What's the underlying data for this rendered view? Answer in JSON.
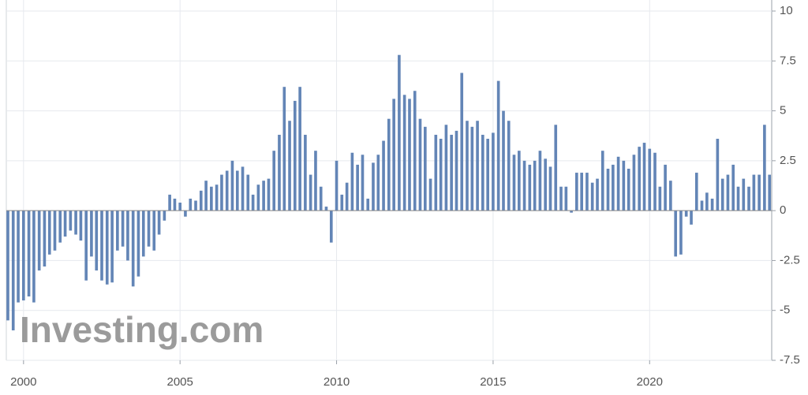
{
  "chart_data": {
    "type": "bar",
    "watermark": "Investing.com",
    "color": "#6385b6",
    "grid": true,
    "xlim": [
      1999.45,
      2023.9
    ],
    "xticks": [
      2000,
      2005,
      2010,
      2015,
      2020
    ],
    "ylim": [
      -7.5,
      10
    ],
    "yticks": [
      10,
      7.5,
      5,
      2.5,
      0,
      -2.5,
      -5,
      -7.5
    ],
    "x": [
      1999.5,
      1999.67,
      1999.83,
      2000,
      2000.17,
      2000.33,
      2000.5,
      2000.67,
      2000.83,
      2001,
      2001.17,
      2001.33,
      2001.5,
      2001.67,
      2001.83,
      2002,
      2002.17,
      2002.33,
      2002.5,
      2002.67,
      2002.83,
      2003,
      2003.17,
      2003.33,
      2003.5,
      2003.67,
      2003.83,
      2004,
      2004.17,
      2004.33,
      2004.5,
      2004.67,
      2004.83,
      2005,
      2005.17,
      2005.33,
      2005.5,
      2005.67,
      2005.83,
      2006,
      2006.17,
      2006.33,
      2006.5,
      2006.67,
      2006.83,
      2007,
      2007.17,
      2007.33,
      2007.5,
      2007.67,
      2007.83,
      2008,
      2008.17,
      2008.33,
      2008.5,
      2008.67,
      2008.83,
      2009,
      2009.17,
      2009.33,
      2009.5,
      2009.67,
      2009.83,
      2010,
      2010.17,
      2010.33,
      2010.5,
      2010.67,
      2010.83,
      2011,
      2011.17,
      2011.33,
      2011.5,
      2011.67,
      2011.83,
      2012,
      2012.17,
      2012.33,
      2012.5,
      2012.67,
      2012.83,
      2013,
      2013.17,
      2013.33,
      2013.5,
      2013.67,
      2013.83,
      2014,
      2014.17,
      2014.33,
      2014.5,
      2014.67,
      2014.83,
      2015,
      2015.17,
      2015.33,
      2015.5,
      2015.67,
      2015.83,
      2016,
      2016.17,
      2016.33,
      2016.5,
      2016.67,
      2016.83,
      2017,
      2017.17,
      2017.33,
      2017.5,
      2017.67,
      2017.83,
      2018,
      2018.17,
      2018.33,
      2018.5,
      2018.67,
      2018.83,
      2019,
      2019.17,
      2019.33,
      2019.5,
      2019.67,
      2019.83,
      2020,
      2020.17,
      2020.33,
      2020.5,
      2020.67,
      2020.83,
      2021,
      2021.17,
      2021.33,
      2021.5,
      2021.67,
      2021.83,
      2022,
      2022.17,
      2022.33,
      2022.5,
      2022.67,
      2022.83,
      2023,
      2023.17,
      2023.33,
      2023.5,
      2023.67,
      2023.83
    ],
    "values": [
      -5.5,
      -6,
      -4.6,
      -4.5,
      -4.3,
      -4.6,
      -3,
      -2.8,
      -2.2,
      -2,
      -1.6,
      -1.3,
      -1,
      -1.2,
      -1.5,
      -3.5,
      -2.3,
      -3,
      -3.5,
      -3.7,
      -3.6,
      -2,
      -1.8,
      -2.5,
      -3.8,
      -3.3,
      -2.3,
      -1.8,
      -2,
      -1.2,
      -0.5,
      0.8,
      0.6,
      0.4,
      -0.3,
      0.6,
      0.5,
      1,
      1.5,
      1.2,
      1.3,
      1.8,
      2,
      2.5,
      2,
      2.2,
      1.8,
      0.8,
      1.3,
      1.5,
      1.6,
      3,
      3.8,
      6.2,
      4.5,
      5.5,
      6.2,
      3.8,
      1.8,
      3,
      1.2,
      0.2,
      -1.6,
      2.5,
      0.8,
      1.4,
      2.9,
      2.3,
      2.8,
      0.6,
      2.4,
      2.8,
      3.5,
      4.6,
      5.6,
      7.8,
      5.8,
      5.6,
      6,
      4.6,
      4.2,
      1.6,
      3.8,
      3.6,
      4.3,
      3.8,
      4,
      6.9,
      4.5,
      4.2,
      4.5,
      3.8,
      3.6,
      3.9,
      6.5,
      5,
      4.5,
      2.8,
      3,
      2.5,
      2.3,
      2.5,
      3,
      2.6,
      2.2,
      4.3,
      1.2,
      1.2,
      -0.1,
      1.9,
      1.9,
      1.9,
      1.4,
      1.6,
      3,
      2.1,
      2.3,
      2.7,
      2.5,
      2.1,
      2.8,
      3.2,
      3.4,
      3.1,
      2.9,
      1.2,
      2.3,
      1.5,
      -2.3,
      -2.2,
      -0.3,
      -0.7,
      1.9,
      0.5,
      0.9,
      0.6,
      3.6,
      1.6,
      1.8,
      2.3,
      1.2,
      1.6,
      1.2,
      1.8,
      1.8,
      4.3,
      1.8
    ]
  }
}
